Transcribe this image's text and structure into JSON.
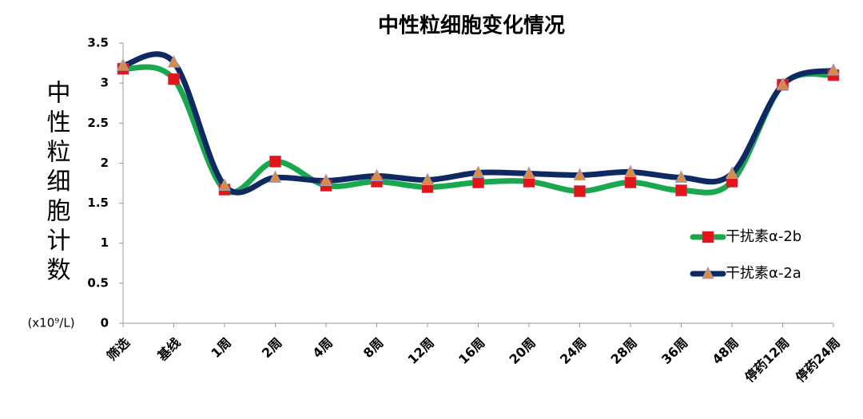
{
  "chart_data": {
    "type": "line",
    "title": "中性粒细胞变化情况",
    "y_label": "中性粒细胞计数",
    "y_unit": "(x10⁹/L)",
    "categories": [
      "筛选",
      "基线",
      "1周",
      "2周",
      "4周",
      "8周",
      "12周",
      "16周",
      "20周",
      "24周",
      "28周",
      "36周",
      "48周",
      "停药12周",
      "停药24周"
    ],
    "series": [
      {
        "name": "干扰素α-2b",
        "color": "#19a84f",
        "marker": "square",
        "marker_color": "#e3141b",
        "values": [
          3.18,
          3.05,
          1.67,
          2.02,
          1.72,
          1.77,
          1.7,
          1.76,
          1.77,
          1.65,
          1.76,
          1.66,
          1.77,
          2.98,
          3.1
        ]
      },
      {
        "name": "干扰素α-2a",
        "color": "#0f2a63",
        "marker": "triangle",
        "marker_color": "#d98a43",
        "values": [
          3.22,
          3.26,
          1.72,
          1.82,
          1.78,
          1.84,
          1.79,
          1.88,
          1.87,
          1.85,
          1.89,
          1.82,
          1.87,
          2.98,
          3.16
        ]
      }
    ],
    "ylim": [
      0,
      3.5
    ],
    "yticks": [
      0,
      0.5,
      1,
      1.5,
      2,
      2.5,
      3,
      3.5
    ],
    "smooth": true,
    "legend": "right"
  }
}
